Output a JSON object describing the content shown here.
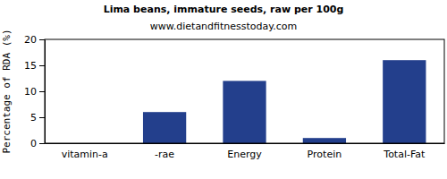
{
  "chart_data": {
    "type": "bar",
    "title": "Lima beans, immature seeds, raw per 100g",
    "subtitle": "www.dietandfitnesstoday.com",
    "y_label": "Percentage of RDA (%)",
    "categories": [
      "vitamin-a",
      "-rae",
      "Energy",
      "Protein",
      "Total-Fat"
    ],
    "values": [
      0,
      6,
      12,
      1,
      16
    ],
    "color": "#233f8c",
    "ylim": [
      0,
      20
    ],
    "yticks": [
      0,
      5,
      10,
      15,
      20
    ],
    "grid": false
  }
}
